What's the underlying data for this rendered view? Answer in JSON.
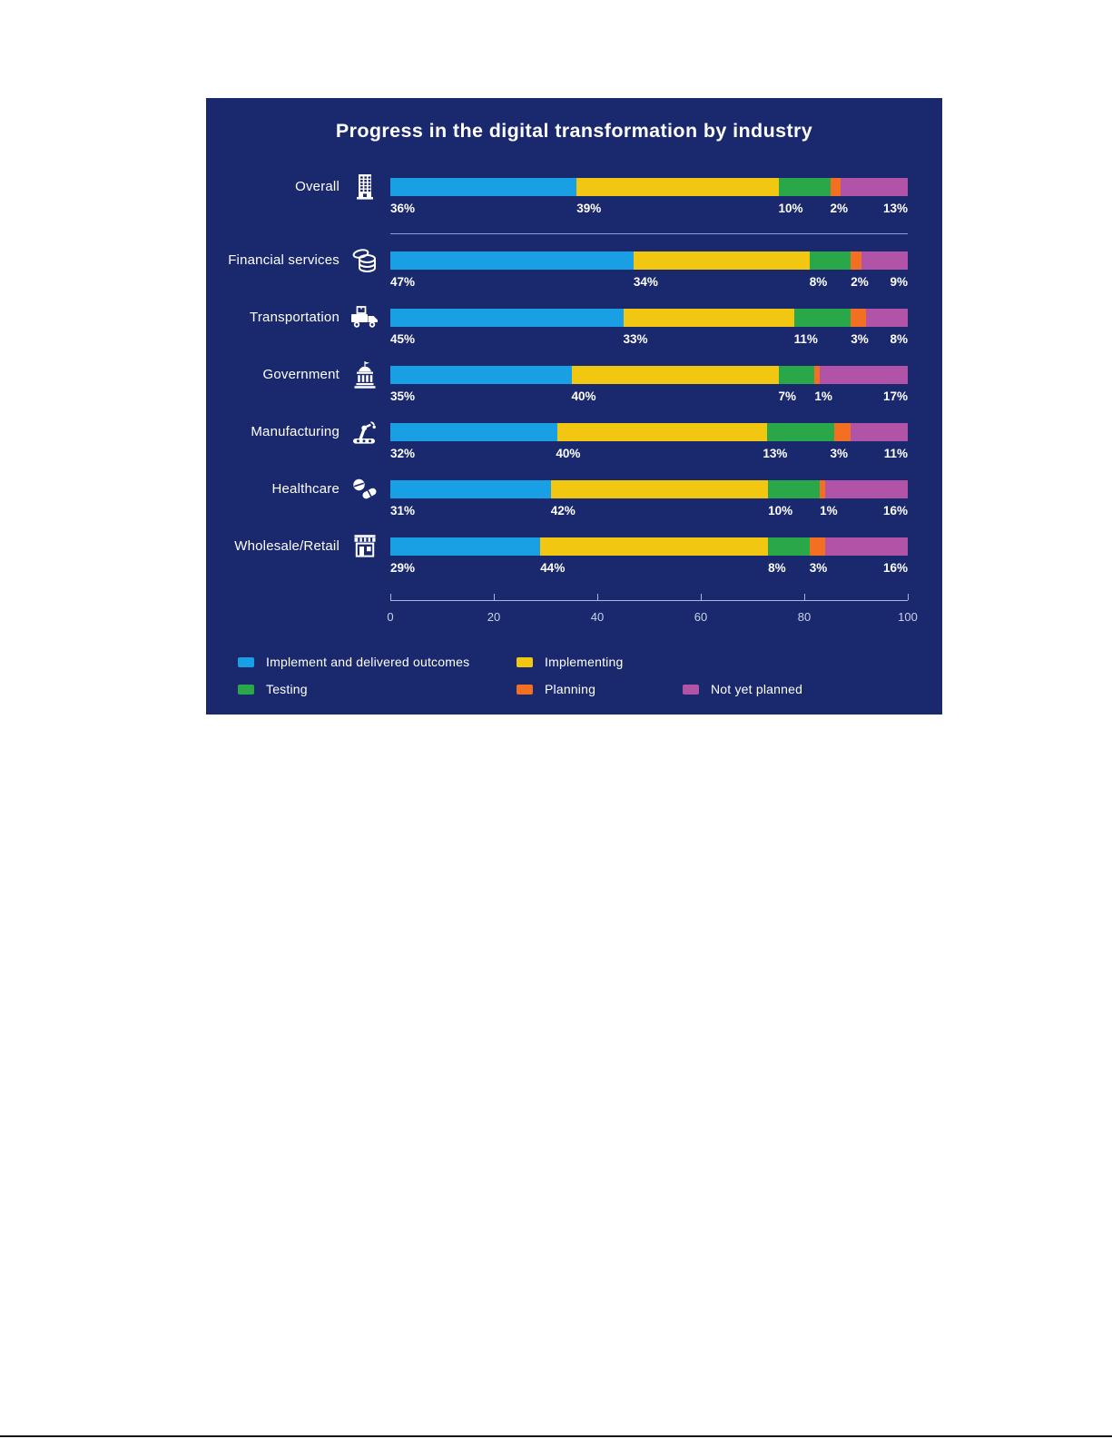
{
  "page": {
    "background": "#ffffff"
  },
  "panel": {
    "background": "#1a296e"
  },
  "chart_data": {
    "type": "bar",
    "stacked": true,
    "orientation": "horizontal",
    "title": "Progress in the digital transformation by industry",
    "categories": [
      "Overall",
      "Financial services",
      "Transportation",
      "Government",
      "Manufacturing",
      "Healthcare",
      "Wholesale/Retail"
    ],
    "category_icons": [
      "office-building-icon",
      "coins-icon",
      "delivery-truck-icon",
      "government-building-icon",
      "robot-arm-icon",
      "pills-icon",
      "storefront-icon"
    ],
    "series": [
      {
        "name": "Implement and delivered outcomes",
        "color": "#199fe3",
        "values": [
          36,
          47,
          45,
          35,
          32,
          31,
          29
        ]
      },
      {
        "name": "Implementing",
        "color": "#f2c712",
        "values": [
          39,
          34,
          33,
          40,
          40,
          42,
          44
        ]
      },
      {
        "name": "Testing",
        "color": "#29a749",
        "values": [
          10,
          8,
          11,
          7,
          13,
          10,
          8
        ]
      },
      {
        "name": "Planning",
        "color": "#f36f21",
        "values": [
          2,
          2,
          3,
          1,
          3,
          1,
          3
        ]
      },
      {
        "name": "Not yet planned",
        "color": "#b153a7",
        "values": [
          13,
          9,
          8,
          17,
          11,
          16,
          16
        ]
      }
    ],
    "value_suffix": "%",
    "xlabel": "",
    "ylabel": "",
    "axis": {
      "min": 0,
      "max": 100,
      "ticks": [
        0,
        20,
        40,
        60,
        80,
        100
      ]
    },
    "legend_position": "bottom",
    "grid": false
  }
}
